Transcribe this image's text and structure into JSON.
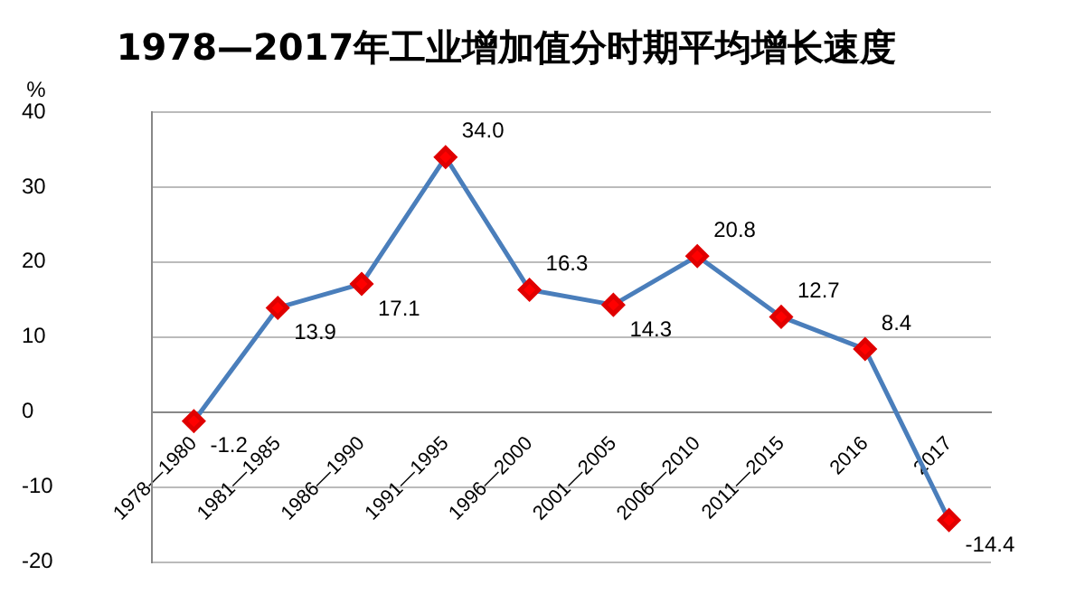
{
  "chart_data": {
    "type": "line",
    "title": "1978—2017年工业增加值分时期平均增长速度",
    "ylabel": "%",
    "categories": [
      "1978—1980",
      "1981—1985",
      "1986—1990",
      "1991—1995",
      "1996—2000",
      "2001—2005",
      "2006—2010",
      "2011—2015",
      "2016",
      "2017"
    ],
    "series": [
      {
        "color": "#4a7ebb",
        "values": [
          -1.2,
          13.9,
          17.1,
          34.0,
          16.3,
          14.3,
          20.8,
          12.7,
          8.4,
          -14.4
        ]
      }
    ],
    "value_labels": [
      "-1.2",
      "13.9",
      "17.1",
      "34.0",
      "16.3",
      "14.3",
      "20.8",
      "12.7",
      "8.4",
      "-14.4"
    ],
    "ylim": [
      -20,
      40
    ],
    "yticks": [
      -20,
      -10,
      0,
      10,
      20,
      30,
      40
    ],
    "grid": "y",
    "marker": "diamond",
    "line_style": "solid",
    "legend": false
  }
}
